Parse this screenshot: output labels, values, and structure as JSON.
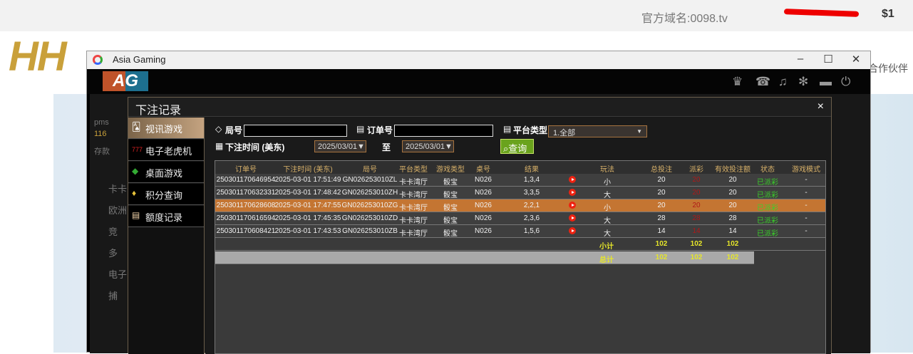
{
  "site": {
    "domain": "官方域名:0098.tv",
    "balance": "$1",
    "logo": "HH GAME",
    "partner": "合作伙伴"
  },
  "window": {
    "title": "Asia Gaming",
    "minimize": "–",
    "maximize": "☐",
    "close": "✕"
  },
  "app": {
    "logo": "AG",
    "icons": [
      "vip-icon",
      "chat-icon",
      "music-icon",
      "gear-icon",
      "message-icon",
      "power-icon"
    ]
  },
  "lobby": {
    "user": "pms",
    "balance": "116",
    "deposit": "存款",
    "items": [
      "卡卡",
      "欧洲",
      "竞",
      "多",
      "电子",
      "捕"
    ]
  },
  "dialog": {
    "title": "下注记录",
    "close": "×",
    "menu": [
      {
        "label": "视讯游戏",
        "icon": "🂡"
      },
      {
        "label": "电子老虎机",
        "icon": "777"
      },
      {
        "label": "桌面游戏",
        "icon": "◆"
      },
      {
        "label": "积分查询",
        "icon": "♦"
      },
      {
        "label": "额度记录",
        "icon": "▤"
      }
    ],
    "filters": {
      "round_label": "局号",
      "round_value": "",
      "order_label": "订单号",
      "order_value": "",
      "platform_label": "平台类型",
      "platform_value": "1.全部",
      "time_label": "下注时间 (美东)",
      "from": "2025/03/01▼",
      "to_label": "至",
      "to": "2025/03/01▼",
      "search": "查询"
    },
    "table": {
      "headers": [
        "订单号",
        "下注时间 (美东)",
        "局号",
        "平台类型",
        "游戏类型",
        "桌号",
        "结果",
        "",
        "玩法",
        "总投注",
        "派彩",
        "有效投注额",
        "状态",
        "游戏模式"
      ],
      "rows": [
        [
          "250301170646954",
          "2025-03-01 17:51:49",
          "GN026253010ZL",
          "卡卡湾厅",
          "骰宝",
          "N026",
          "1,3,4",
          "",
          "小",
          "20",
          "20",
          "20",
          "已派彩",
          "-"
        ],
        [
          "250301170632331",
          "2025-03-01 17:48:42",
          "GN026253010ZH",
          "卡卡湾厅",
          "骰宝",
          "N026",
          "3,3,5",
          "",
          "大",
          "20",
          "20",
          "20",
          "已派彩",
          "-"
        ],
        [
          "250301170628608",
          "2025-03-01 17:47:55",
          "GN026253010ZG",
          "卡卡湾厅",
          "骰宝",
          "N026",
          "2,2,1",
          "",
          "小",
          "20",
          "20",
          "20",
          "已派彩",
          "-"
        ],
        [
          "250301170616594",
          "2025-03-01 17:45:35",
          "GN026253010ZD",
          "卡卡湾厅",
          "骰宝",
          "N026",
          "2,3,6",
          "",
          "大",
          "28",
          "28",
          "28",
          "已派彩",
          "-"
        ],
        [
          "250301170608421",
          "2025-03-01 17:43:53",
          "GN026253010ZB",
          "卡卡湾厅",
          "骰宝",
          "N026",
          "1,5,6",
          "",
          "大",
          "14",
          "14",
          "14",
          "已派彩",
          "-"
        ]
      ],
      "subtotal": {
        "label": "小计",
        "bet": "102",
        "payout": "102",
        "valid": "102"
      },
      "total": {
        "label": "总计",
        "bet": "102",
        "payout": "102",
        "valid": "102"
      },
      "highlight_row": 2
    }
  },
  "colors": {
    "highlight": "#c47532",
    "header_text": "#d9b26a",
    "status": "#3ad12a",
    "payout": "#b01818",
    "sum": "#e6e62a"
  }
}
